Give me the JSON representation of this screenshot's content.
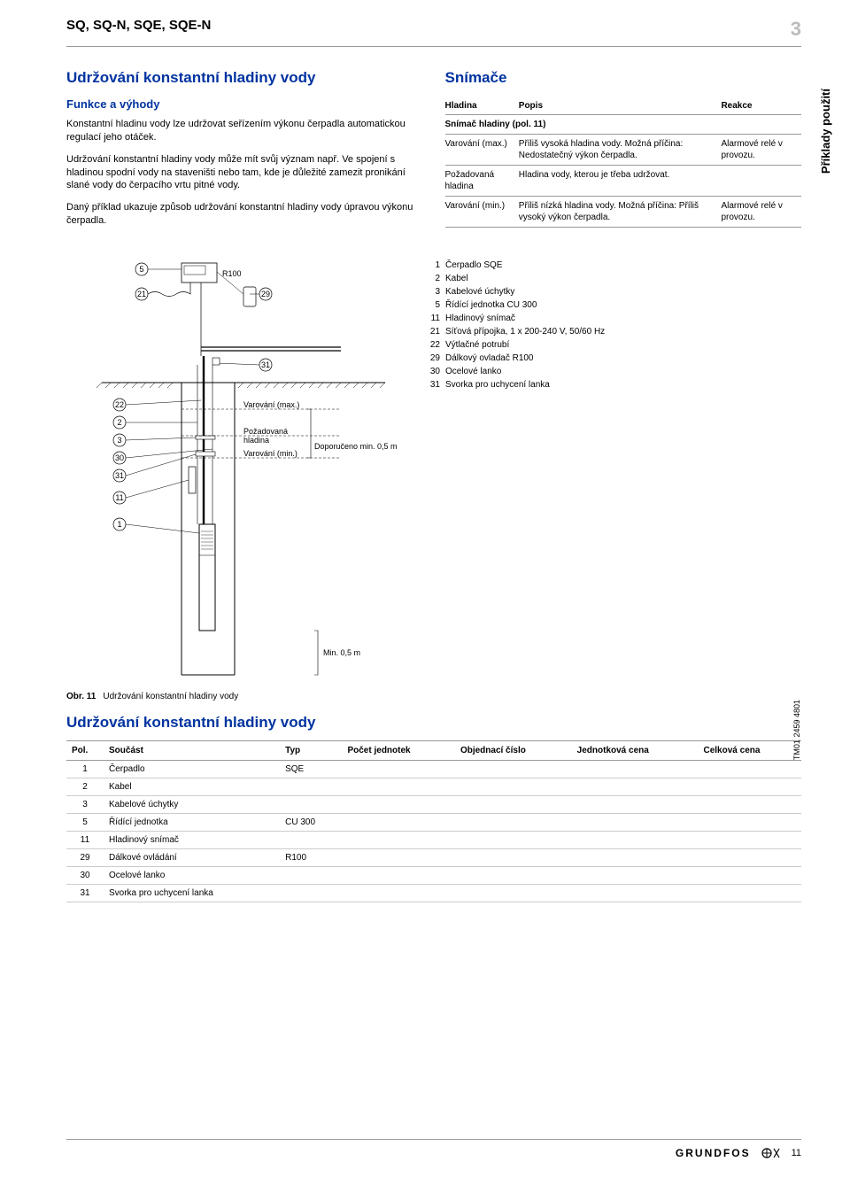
{
  "header": {
    "product_code": "SQ, SQ-N, SQE, SQE-N",
    "chapter_number": "3"
  },
  "side_tab": "Příklady použití",
  "left": {
    "title": "Udržování konstantní hladiny vody",
    "subtitle": "Funkce a výhody",
    "paragraphs": [
      "Konstantní hladinu vody lze udržovat seřízením výkonu čerpadla automatickou regulací jeho otáček.",
      "Udržování konstantní hladiny vody může mít svůj význam např. Ve spojení s hladinou spodní vody na staveništi nebo tam, kde je důležité zamezit pronikání slané vody do čerpacího vrtu pitné vody.",
      "Daný příklad ukazuje způsob udržování konstantní hladiny vody úpravou výkonu čerpadla."
    ]
  },
  "right": {
    "title": "Snímače",
    "table": {
      "columns": [
        "Hladina",
        "Popis",
        "Reakce"
      ],
      "rows": [
        {
          "kind": "subhead",
          "span_text": "Snímač hladiny (pol. 11)"
        },
        {
          "cells": [
            "Varování (max.)",
            "Příliš vysoká hladina vody. Možná příčina: Nedostatečný výkon čerpadla.",
            "Alarmové relé v provozu."
          ]
        },
        {
          "cells": [
            "Požadovaná hladina",
            "Hladina vody, kterou je třeba udržovat.",
            ""
          ]
        },
        {
          "cells": [
            "Varování (min.)",
            "Příliš nízká hladina vody. Možná příčina: Příliš vysoký výkon čerpadla.",
            "Alarmové relé v provozu."
          ]
        }
      ]
    }
  },
  "diagram": {
    "remote_label": "R100",
    "annotations": {
      "var_max": "Varování (max.)",
      "req": "Požadovaná hladina",
      "var_min": "Varování (min.)",
      "rec_min": "Doporučeno min. 0,5 m",
      "min_bottom": "Min. 0,5 m"
    },
    "callouts": [
      "5",
      "21",
      "29",
      "31",
      "22",
      "2",
      "3",
      "30",
      "31",
      "11",
      "1"
    ]
  },
  "legend": [
    {
      "n": "1",
      "t": "Čerpadlo SQE"
    },
    {
      "n": "2",
      "t": "Kabel"
    },
    {
      "n": "3",
      "t": "Kabelové úchytky"
    },
    {
      "n": "5",
      "t": "Řídící jednotka CU 300"
    },
    {
      "n": "11",
      "t": "Hladinový snímač"
    },
    {
      "n": "21",
      "t": "Síťová přípojka, 1 x 200-240 V, 50/60 Hz"
    },
    {
      "n": "22",
      "t": "Výtlačné potrubí"
    },
    {
      "n": "29",
      "t": "Dálkový ovladač R100"
    },
    {
      "n": "30",
      "t": "Ocelové lanko"
    },
    {
      "n": "31",
      "t": "Svorka pro uchycení lanka"
    }
  ],
  "figure": {
    "label": "Obr. 11",
    "caption": "Udržování konstantní hladiny vody",
    "ref": "TM01 2459 4801"
  },
  "parts_section": {
    "title": "Udržování konstantní hladiny vody",
    "columns": [
      "Pol.",
      "Součást",
      "Typ",
      "Počet jednotek",
      "Objednací číslo",
      "Jednotková cena",
      "Celková cena"
    ],
    "rows": [
      {
        "pol": "1",
        "name": "Čerpadlo",
        "type": "SQE"
      },
      {
        "pol": "2",
        "name": "Kabel",
        "type": ""
      },
      {
        "pol": "3",
        "name": "Kabelové úchytky",
        "type": ""
      },
      {
        "pol": "5",
        "name": "Řídící jednotka",
        "type": "CU 300"
      },
      {
        "pol": "11",
        "name": "Hladinový snímač",
        "type": ""
      },
      {
        "pol": "29",
        "name": "Dálkové ovládání",
        "type": "R100"
      },
      {
        "pol": "30",
        "name": "Ocelové lanko",
        "type": ""
      },
      {
        "pol": "31",
        "name": "Svorka pro uchycení lanka",
        "type": ""
      }
    ]
  },
  "footer": {
    "brand": "GRUNDFOS",
    "page": "11"
  },
  "colors": {
    "heading": "#0033a0",
    "grey": "#bdbdbd",
    "line": "#999999"
  }
}
